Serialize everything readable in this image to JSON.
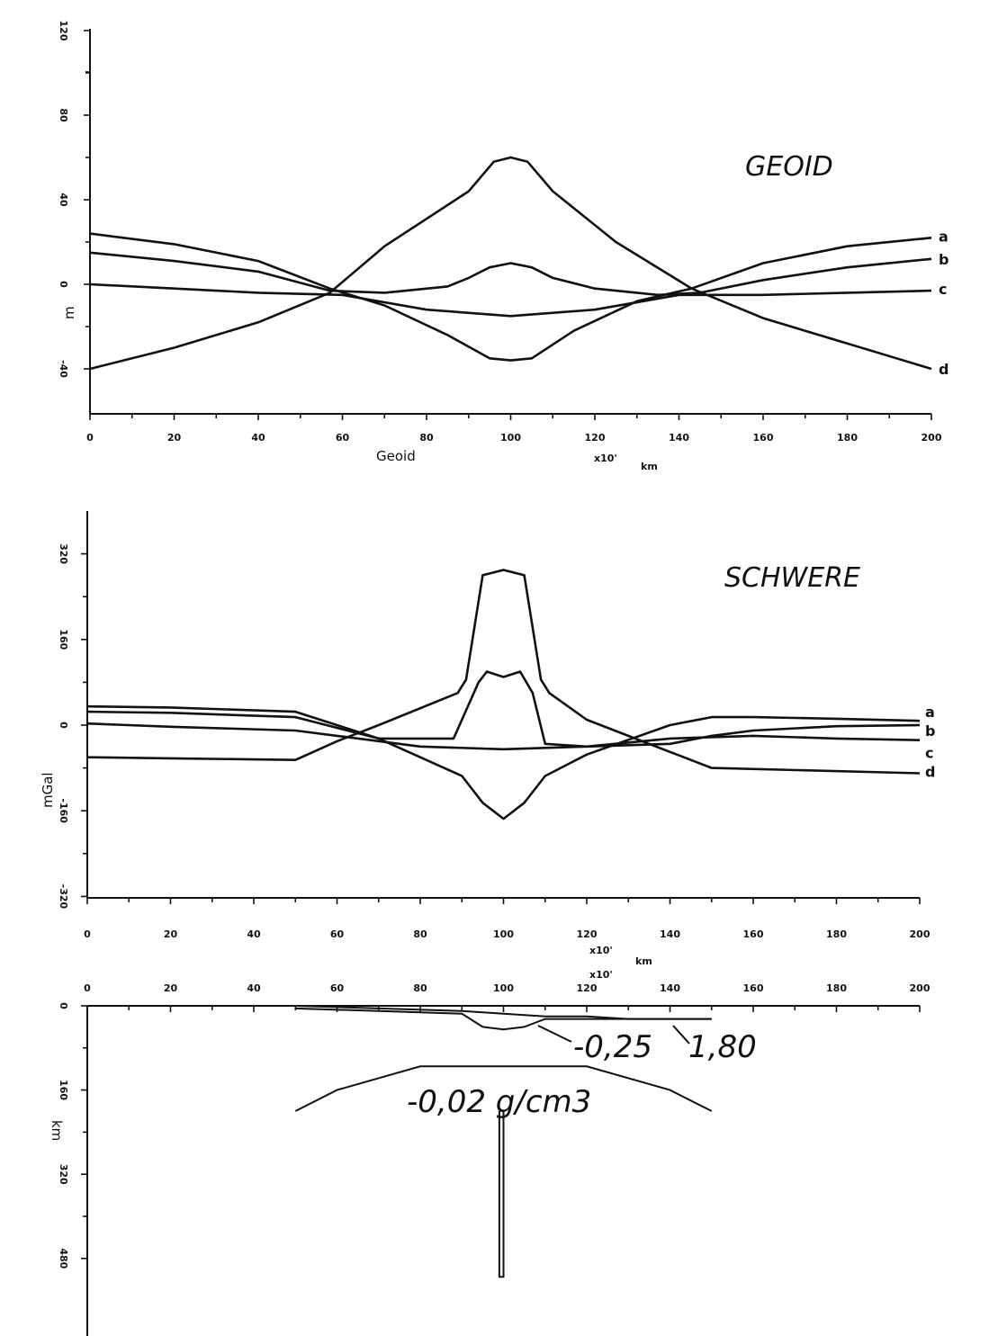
{
  "chart_data": [
    {
      "type": "line",
      "title": "GEOID",
      "ylabel": "m",
      "xlabel": "Geoid",
      "xunit_mult": "x10'",
      "xunit": "km",
      "xlim": [
        0,
        200
      ],
      "ylim": [
        -30,
        60
      ],
      "x_ticks": [
        "0",
        "20",
        "40",
        "60",
        "80",
        "100",
        "120",
        "140",
        "160",
        "180",
        "200"
      ],
      "y_ticks": [
        {
          "value": -20,
          "label": "-40"
        },
        {
          "value": 0,
          "label": "0"
        },
        {
          "value": 20,
          "label": "40"
        },
        {
          "value": 40,
          "label": "80"
        },
        {
          "value": 60,
          "label": "120"
        }
      ],
      "series": [
        {
          "name": "a",
          "x": [
            0,
            20,
            40,
            57,
            70,
            85,
            95,
            100,
            105,
            115,
            130,
            143,
            160,
            180,
            200
          ],
          "y": [
            12,
            9.5,
            5.5,
            -1,
            -5,
            -12,
            -17.5,
            -18,
            -17.5,
            -11,
            -4,
            -1,
            5,
            9,
            11
          ]
        },
        {
          "name": "b",
          "x": [
            0,
            20,
            40,
            57,
            70,
            85,
            90,
            95,
            100,
            105,
            110,
            120,
            135,
            145,
            160,
            180,
            200
          ],
          "y": [
            7.5,
            5.5,
            3,
            -1.5,
            -2,
            -0.5,
            1.5,
            4,
            5,
            4,
            1.5,
            -1,
            -2.5,
            -2,
            1,
            4,
            6
          ]
        },
        {
          "name": "c",
          "x": [
            0,
            20,
            40,
            60,
            80,
            100,
            120,
            140,
            160,
            180,
            200
          ],
          "y": [
            0,
            -1,
            -2,
            -2.5,
            -6,
            -7.5,
            -6,
            -2.5,
            -2.5,
            -2,
            -1.5
          ]
        },
        {
          "name": "d",
          "x": [
            0,
            20,
            40,
            57,
            70,
            90,
            96,
            100,
            104,
            110,
            125,
            143,
            160,
            180,
            200
          ],
          "y": [
            -20,
            -15,
            -9,
            -2,
            9,
            22,
            29,
            30,
            29,
            22,
            10,
            -1,
            -8,
            -14,
            -20
          ]
        }
      ]
    },
    {
      "type": "line",
      "title": "SCHWERE",
      "ylabel": "mGal",
      "xunit_mult": "x10'",
      "xunit": "km",
      "xlim": [
        0,
        200
      ],
      "ylim": [
        -320,
        400
      ],
      "x_ticks": [
        "0",
        "20",
        "40",
        "60",
        "80",
        "100",
        "120",
        "140",
        "160",
        "180",
        "200"
      ],
      "y_ticks": [
        {
          "value": -320,
          "label": "-320"
        },
        {
          "value": -160,
          "label": "-160"
        },
        {
          "value": 0,
          "label": "0"
        },
        {
          "value": 160,
          "label": "160"
        },
        {
          "value": 320,
          "label": "320"
        }
      ],
      "series": [
        {
          "name": "a",
          "x": [
            0,
            20,
            50,
            60,
            70,
            90,
            95,
            100,
            105,
            110,
            120,
            140,
            150,
            160,
            180,
            200
          ],
          "y": [
            35,
            33,
            25,
            0,
            -25,
            -95,
            -145,
            -175,
            -145,
            -95,
            -55,
            0,
            15,
            15,
            12,
            8
          ]
        },
        {
          "name": "b",
          "x": [
            0,
            20,
            50,
            60,
            70,
            88,
            94,
            96,
            100,
            104,
            107,
            110,
            120,
            140,
            150,
            160,
            180,
            200
          ],
          "y": [
            25,
            23,
            15,
            -5,
            -25,
            -25,
            80,
            100,
            90,
            100,
            60,
            -35,
            -40,
            -35,
            -20,
            -10,
            -2,
            0
          ]
        },
        {
          "name": "c",
          "x": [
            0,
            20,
            50,
            60,
            80,
            100,
            120,
            140,
            160,
            180,
            200
          ],
          "y": [
            3,
            -3,
            -10,
            -20,
            -40,
            -45,
            -40,
            -25,
            -20,
            -25,
            -28
          ]
        },
        {
          "name": "d",
          "x": [
            0,
            20,
            50,
            60,
            70,
            89,
            91,
            95,
            100,
            105,
            109,
            111,
            120,
            140,
            150,
            200
          ],
          "y": [
            -60,
            -62,
            -65,
            -30,
            0,
            60,
            85,
            280,
            290,
            280,
            85,
            60,
            10,
            -50,
            -80,
            -90
          ]
        }
      ]
    },
    {
      "type": "area",
      "title": "",
      "ylabel": "km",
      "xunit_mult": "x10'",
      "xlim": [
        0,
        200
      ],
      "ylim": [
        0,
        480
      ],
      "x_ticks": [
        "0",
        "20",
        "40",
        "60",
        "80",
        "100",
        "120",
        "140",
        "160",
        "180",
        "200"
      ],
      "y_ticks": [
        {
          "value": 0,
          "label": "0"
        },
        {
          "value": 160,
          "label": "160"
        },
        {
          "value": 320,
          "label": "320"
        },
        {
          "value": 480,
          "label": "480"
        }
      ],
      "bodies": [
        {
          "name": "upper-layer",
          "density_label": "-0,25",
          "x": [
            50,
            70,
            90,
            95,
            100,
            105,
            110,
            120,
            130,
            140,
            150
          ],
          "y": [
            5,
            10,
            15,
            40,
            45,
            40,
            25,
            25,
            25,
            25,
            25
          ]
        },
        {
          "name": "crust-layer",
          "density_label": "1,80",
          "x": [
            0,
            50,
            70,
            90,
            100,
            110,
            120,
            130,
            140,
            150
          ],
          "y": [
            0,
            0,
            5,
            10,
            15,
            20,
            20,
            25,
            25,
            25
          ]
        },
        {
          "name": "mantle-body",
          "density_label": "-0,02 g/cm3",
          "x": [
            50,
            60,
            80,
            100,
            120,
            140,
            150
          ],
          "y": [
            200,
            160,
            115,
            115,
            115,
            160,
            200
          ]
        },
        {
          "name": "stem",
          "x": [
            99,
            99,
            100,
            100
          ],
          "y": [
            200,
            515,
            515,
            200
          ]
        }
      ]
    }
  ]
}
